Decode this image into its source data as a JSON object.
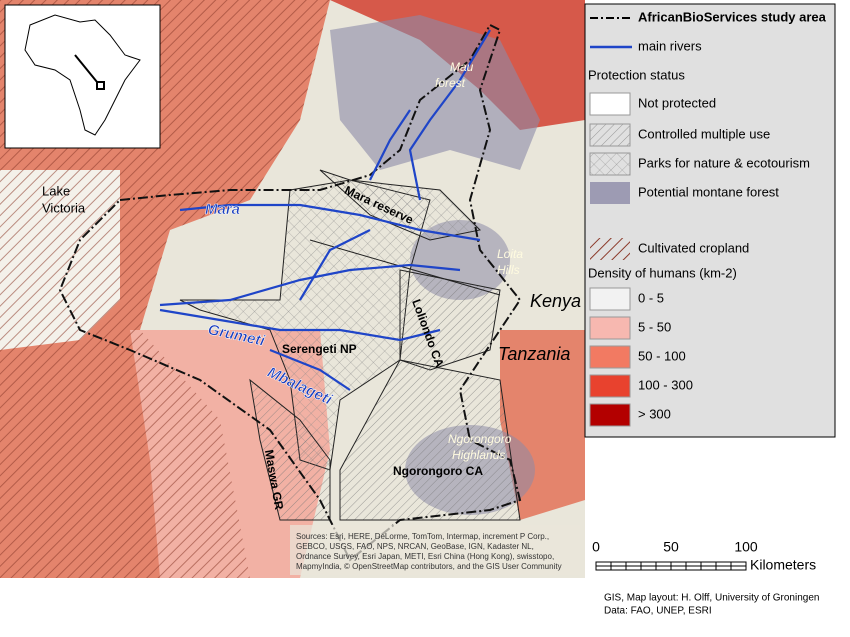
{
  "legend": {
    "study_area": "AfricanBioServices study area",
    "rivers": "main rivers",
    "protection_title": "Protection status",
    "not_protected": "Not protected",
    "controlled": "Controlled multiple use",
    "parks": "Parks for nature & ecotourism",
    "montane": "Potential montane forest",
    "cropland": "Cultivated cropland",
    "density_title": "Density of humans (km-2)",
    "density_classes": [
      "0 - 5",
      "5 - 50",
      "50 - 100",
      "100 - 300",
      "> 300"
    ]
  },
  "map_labels": {
    "lake_victoria": [
      "Lake",
      "Victoria"
    ],
    "mara": "Mara",
    "mau_forest": [
      "Mau",
      "forest"
    ],
    "mara_reserve": "Mara reserve",
    "loita_hills": [
      "Loita",
      "Hills"
    ],
    "kenya": "Kenya",
    "tanzania": "Tanzania",
    "grumeti": "Grumeti",
    "serengeti": "Serengeti NP",
    "loliondo": "Loliondo CA",
    "mbalageti": "Mbalageti",
    "ngorongoro_highlands": [
      "Ngorongoro",
      "Highlands"
    ],
    "ngorongoro_ca": "Ngorongoro CA",
    "maswa": "Maswa GR"
  },
  "scale_bar": {
    "ticks": [
      "0",
      "50",
      "100"
    ],
    "unit": "Kilometers"
  },
  "credits": {
    "sources": [
      "Sources: Esri, HERE, DeLorme, TomTom, Intermap, increment P Corp.,",
      "GEBCO, USGS, FAO, NPS, NRCAN, GeoBase, IGN, Kadaster NL,",
      "Ordnance Survey, Esri Japan, METI, Esri China (Hong Kong), swisstopo,",
      "MapmyIndia, © OpenStreetMap contributors, and the GIS User Community"
    ],
    "layout": "GIS, Map layout: H. Olff, University of Groningen",
    "data": "Data: FAO, UNEP, ESRI"
  }
}
